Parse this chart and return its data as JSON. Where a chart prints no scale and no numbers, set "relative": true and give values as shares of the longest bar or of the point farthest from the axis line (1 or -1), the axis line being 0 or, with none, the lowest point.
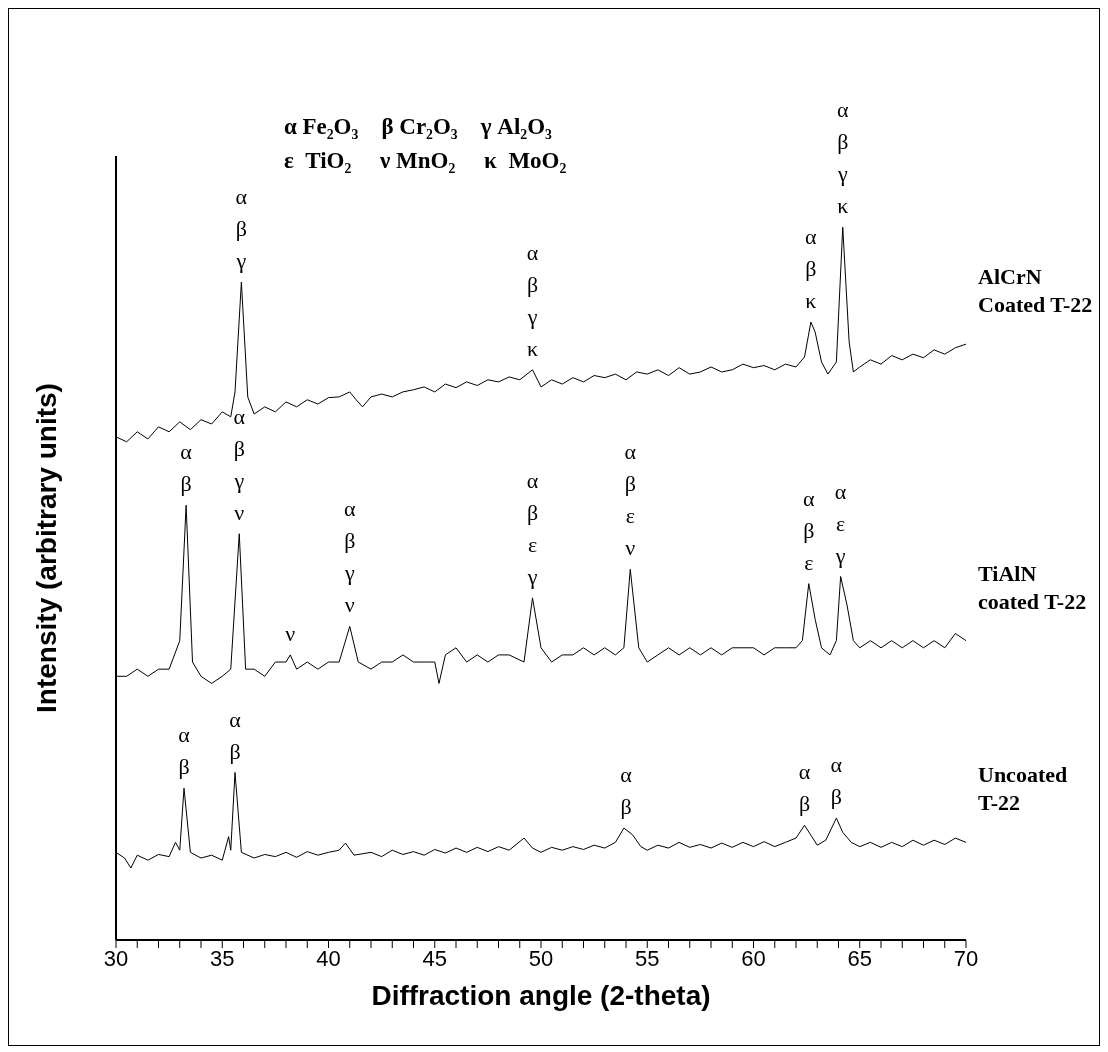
{
  "chart_data": {
    "type": "line",
    "relative": true,
    "xlabel": "Diffraction angle (2-theta)",
    "ylabel": "Intensity (arbitrary units)",
    "xlim": [
      30,
      70
    ],
    "xticks": [
      30,
      {
        "value": 31,
        "label": null
      },
      {
        "value": 32,
        "label": null
      },
      {
        "value": 33,
        "label": null
      },
      {
        "value": 34,
        "label": null
      },
      35,
      {
        "value": 36,
        "label": null
      },
      {
        "value": 37,
        "label": null
      },
      {
        "value": 38,
        "label": null
      },
      {
        "value": 39,
        "label": null
      },
      40,
      {
        "value": 41,
        "label": null
      },
      {
        "value": 42,
        "label": null
      },
      {
        "value": 43,
        "label": null
      },
      {
        "value": 44,
        "label": null
      },
      45,
      {
        "value": 46,
        "label": null
      },
      {
        "value": 47,
        "label": null
      },
      {
        "value": 48,
        "label": null
      },
      {
        "value": 49,
        "label": null
      },
      50,
      {
        "value": 51,
        "label": null
      },
      {
        "value": 52,
        "label": null
      },
      {
        "value": 53,
        "label": null
      },
      {
        "value": 54,
        "label": null
      },
      55,
      {
        "value": 56,
        "label": null
      },
      {
        "value": 57,
        "label": null
      },
      {
        "value": 58,
        "label": null
      },
      {
        "value": 59,
        "label": null
      },
      60,
      {
        "value": 61,
        "label": null
      },
      {
        "value": 62,
        "label": null
      },
      {
        "value": 63,
        "label": null
      },
      {
        "value": 64,
        "label": null
      },
      65,
      {
        "value": 66,
        "label": null
      },
      {
        "value": 67,
        "label": null
      },
      {
        "value": 68,
        "label": null
      },
      {
        "value": 69,
        "label": null
      },
      70
    ],
    "marker": "none",
    "line_style": "solid",
    "series": [
      {
        "name": "AlCrN Coated T-22",
        "color": "#000000",
        "x": [
          30,
          30.5,
          31,
          31.5,
          32,
          32.5,
          33,
          33.5,
          34,
          34.5,
          35,
          35.4,
          35.6,
          35.9,
          36.2,
          36.5,
          37,
          37.5,
          38,
          38.5,
          39,
          39.5,
          40,
          40.5,
          41,
          41.3,
          41.6,
          42,
          42.5,
          43,
          43.5,
          44,
          44.5,
          45,
          45.5,
          46,
          46.5,
          47,
          47.5,
          48,
          48.5,
          49,
          49.6,
          50,
          50.5,
          51,
          51.5,
          52,
          52.5,
          53,
          53.5,
          54,
          54.5,
          55,
          55.5,
          56,
          56.5,
          57,
          57.5,
          58,
          58.5,
          59,
          59.5,
          60,
          60.5,
          61,
          61.5,
          62,
          62.4,
          62.7,
          62.9,
          63.2,
          63.5,
          63.9,
          64.2,
          64.5,
          64.7,
          65,
          65.5,
          66,
          66.5,
          67,
          67.5,
          68,
          68.5,
          69,
          69.5,
          70
        ],
        "values": [
          0.706,
          0.699,
          0.713,
          0.703,
          0.72,
          0.713,
          0.727,
          0.716,
          0.73,
          0.724,
          0.741,
          0.734,
          0.769,
          0.923,
          0.762,
          0.738,
          0.748,
          0.741,
          0.755,
          0.748,
          0.758,
          0.752,
          0.761,
          0.762,
          0.769,
          0.758,
          0.748,
          0.762,
          0.766,
          0.762,
          0.769,
          0.772,
          0.776,
          0.769,
          0.78,
          0.775,
          0.783,
          0.778,
          0.786,
          0.783,
          0.79,
          0.786,
          0.8,
          0.776,
          0.786,
          0.78,
          0.789,
          0.783,
          0.792,
          0.789,
          0.794,
          0.786,
          0.797,
          0.794,
          0.8,
          0.792,
          0.803,
          0.794,
          0.797,
          0.804,
          0.797,
          0.8,
          0.808,
          0.803,
          0.806,
          0.8,
          0.808,
          0.804,
          0.818,
          0.867,
          0.853,
          0.811,
          0.794,
          0.811,
          1,
          0.839,
          0.797,
          0.804,
          0.814,
          0.808,
          0.82,
          0.814,
          0.822,
          0.817,
          0.828,
          0.822,
          0.831,
          0.836
        ]
      },
      {
        "name": "TiAlN coated T-22",
        "color": "#000000",
        "x": [
          30,
          30.5,
          31,
          31.5,
          32,
          32.5,
          33,
          33.3,
          33.6,
          34,
          34.5,
          35,
          35.4,
          35.8,
          36.1,
          36.5,
          37,
          37.5,
          38,
          38.2,
          38.5,
          39,
          39.5,
          40,
          40.5,
          41,
          41.4,
          42,
          42.5,
          43,
          43.5,
          44,
          44.5,
          45,
          45.2,
          45.5,
          46,
          46.5,
          47,
          47.5,
          48,
          48.5,
          49.2,
          49.6,
          50,
          50.5,
          51,
          51.5,
          52,
          52.5,
          53,
          53.5,
          53.9,
          54.2,
          54.6,
          55,
          55.5,
          56,
          56.5,
          57,
          57.5,
          58,
          58.5,
          59,
          59.5,
          60,
          60.5,
          61,
          61.5,
          62,
          62.3,
          62.6,
          62.9,
          63.2,
          63.6,
          63.9,
          64.1,
          64.4,
          64.7,
          65,
          65.5,
          66,
          66.5,
          67,
          67.5,
          68,
          68.5,
          69,
          69.5,
          70
        ],
        "values": [
          0.37,
          0.37,
          0.38,
          0.37,
          0.38,
          0.38,
          0.42,
          0.61,
          0.39,
          0.37,
          0.36,
          0.37,
          0.38,
          0.57,
          0.38,
          0.38,
          0.37,
          0.39,
          0.39,
          0.4,
          0.38,
          0.39,
          0.38,
          0.39,
          0.39,
          0.44,
          0.39,
          0.38,
          0.39,
          0.39,
          0.4,
          0.39,
          0.39,
          0.39,
          0.36,
          0.4,
          0.41,
          0.39,
          0.4,
          0.39,
          0.4,
          0.4,
          0.39,
          0.48,
          0.41,
          0.39,
          0.4,
          0.4,
          0.41,
          0.4,
          0.41,
          0.4,
          0.41,
          0.52,
          0.41,
          0.39,
          0.4,
          0.41,
          0.4,
          0.41,
          0.4,
          0.41,
          0.4,
          0.41,
          0.41,
          0.41,
          0.4,
          0.41,
          0.41,
          0.41,
          0.42,
          0.5,
          0.45,
          0.41,
          0.4,
          0.42,
          0.51,
          0.47,
          0.42,
          0.41,
          0.42,
          0.41,
          0.42,
          0.41,
          0.42,
          0.41,
          0.42,
          0.41,
          0.43,
          0.42
        ]
      },
      {
        "name": "Uncoated T-22",
        "color": "#000000",
        "x": [
          30,
          30.4,
          30.7,
          31,
          31.5,
          32,
          32.5,
          32.8,
          33,
          33.2,
          33.5,
          34,
          34.5,
          35,
          35.3,
          35.4,
          35.6,
          35.9,
          36.5,
          37,
          37.5,
          38,
          38.5,
          39,
          39.5,
          40,
          40.5,
          40.8,
          41.2,
          42,
          42.5,
          43,
          43.5,
          44,
          44.5,
          45,
          45.5,
          46,
          46.5,
          47,
          47.5,
          48,
          48.5,
          49.2,
          49.6,
          50,
          50.5,
          51,
          51.5,
          52,
          52.5,
          53,
          53.5,
          53.9,
          54.3,
          54.7,
          55,
          55.5,
          56,
          56.5,
          57,
          57.5,
          58,
          58.5,
          59,
          59.5,
          60,
          60.5,
          61,
          61.5,
          62,
          62.4,
          62.7,
          63,
          63.4,
          63.9,
          64.2,
          64.6,
          65,
          65.5,
          66,
          66.5,
          67,
          67.5,
          68,
          68.5,
          69,
          69.5,
          70
        ],
        "values": [
          0.123,
          0.115,
          0.101,
          0.119,
          0.112,
          0.12,
          0.117,
          0.137,
          0.126,
          0.213,
          0.123,
          0.115,
          0.119,
          0.112,
          0.145,
          0.126,
          0.235,
          0.123,
          0.115,
          0.12,
          0.117,
          0.123,
          0.116,
          0.124,
          0.119,
          0.123,
          0.126,
          0.136,
          0.119,
          0.123,
          0.117,
          0.126,
          0.12,
          0.124,
          0.119,
          0.127,
          0.122,
          0.129,
          0.123,
          0.13,
          0.124,
          0.131,
          0.126,
          0.143,
          0.129,
          0.123,
          0.13,
          0.126,
          0.131,
          0.127,
          0.133,
          0.129,
          0.137,
          0.157,
          0.148,
          0.131,
          0.126,
          0.133,
          0.129,
          0.137,
          0.13,
          0.134,
          0.129,
          0.136,
          0.13,
          0.137,
          0.131,
          0.138,
          0.131,
          0.137,
          0.143,
          0.161,
          0.147,
          0.133,
          0.14,
          0.171,
          0.151,
          0.137,
          0.131,
          0.137,
          0.13,
          0.137,
          0.131,
          0.14,
          0.133,
          0.14,
          0.134,
          0.143,
          0.137
        ]
      }
    ],
    "annotations": [
      "α Fe₂O₃    β Cr₂O₃    γ Al₂O₃",
      "ε  TiO₂     ν MnO₂     κ  MoO₂",
      {
        "text": "α β γ",
        "x": 35.9,
        "y": 0.923
      },
      {
        "text": "α β γ κ",
        "x": 49.6,
        "y": 0.8
      },
      {
        "text": "α β κ",
        "x": 62.7,
        "y": 0.867
      },
      {
        "text": "α β γ κ",
        "x": 64.2,
        "y": 1
      },
      {
        "text": "α β",
        "x": 33.3,
        "y": 0.61
      },
      {
        "text": "α β γ ν",
        "x": 35.8,
        "y": 0.57
      },
      {
        "text": "ν",
        "x": 38.2,
        "y": 0.4
      },
      {
        "text": "α β γ ν",
        "x": 41,
        "y": 0.44
      },
      {
        "text": "α β ε γ",
        "x": 49.6,
        "y": 0.48
      },
      {
        "text": "α β ε ν",
        "x": 54.2,
        "y": 0.52
      },
      {
        "text": "α β ε",
        "x": 62.6,
        "y": 0.5
      },
      {
        "text": "α ε γ",
        "x": 64.1,
        "y": 0.51
      },
      {
        "text": "α β",
        "x": 33.2,
        "y": 0.213
      },
      {
        "text": "α β",
        "x": 35.6,
        "y": 0.235
      },
      {
        "text": "α β",
        "x": 54,
        "y": 0.157
      },
      {
        "text": "α β",
        "x": 62.4,
        "y": 0.161
      },
      {
        "text": "α β",
        "x": 63.9,
        "y": 0.171
      }
    ]
  }
}
